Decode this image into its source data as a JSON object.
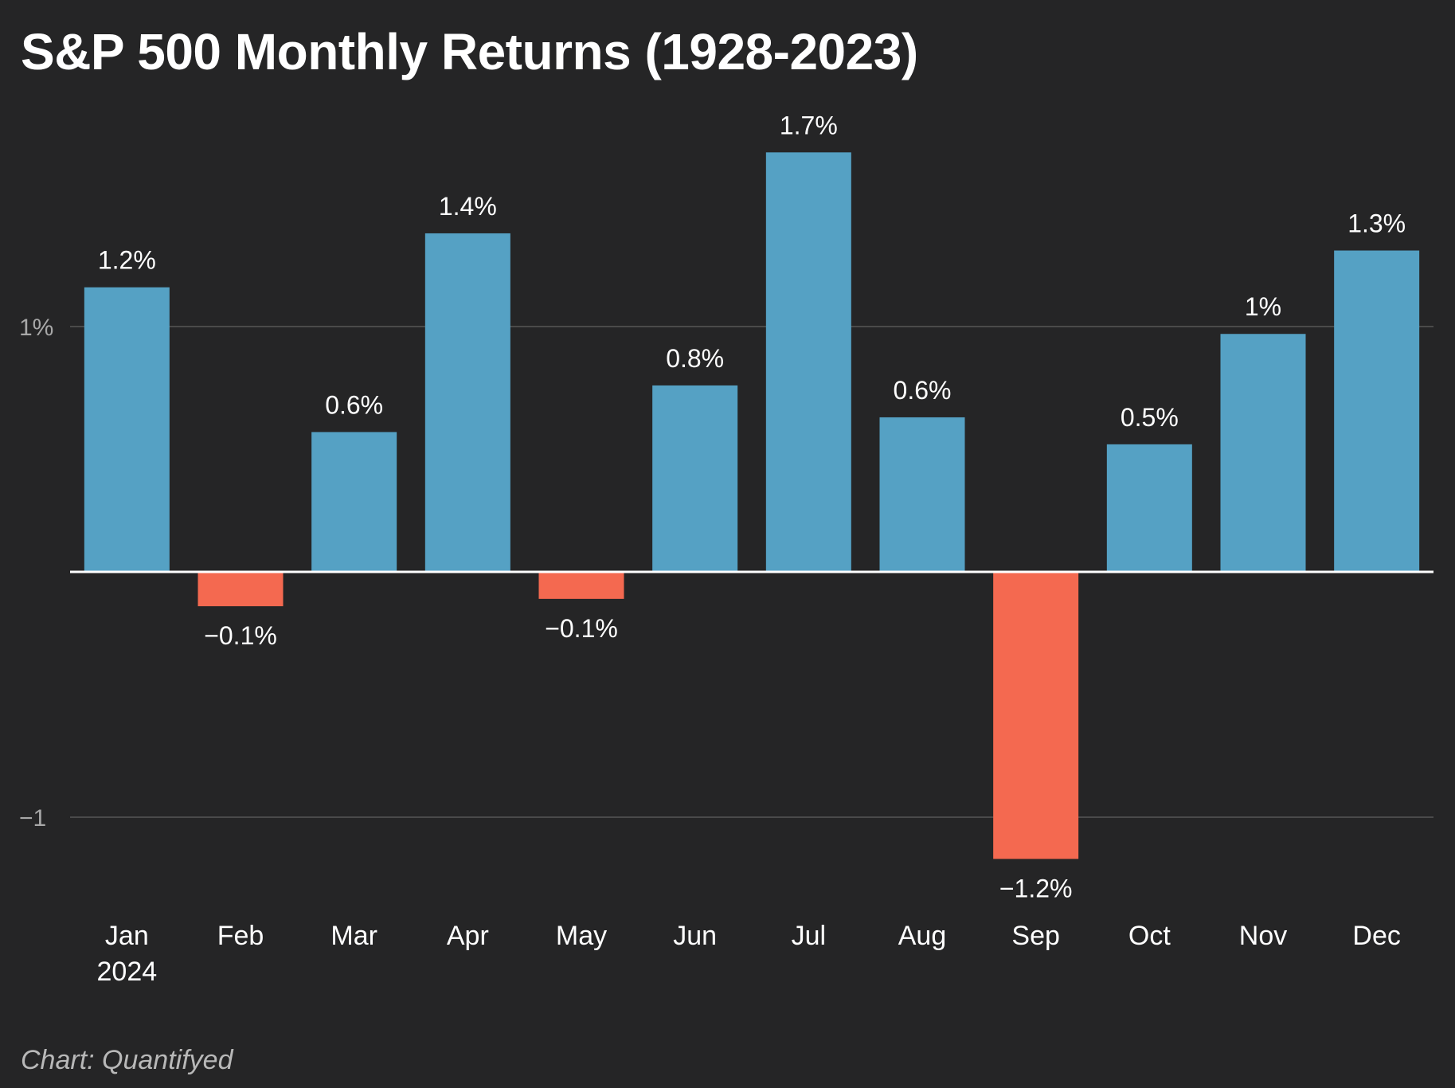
{
  "header": {
    "title": "S&P 500 Monthly Returns (1928-2023)"
  },
  "footer": {
    "credit": "Chart: Quantifyed"
  },
  "colors": {
    "background": "#252526",
    "positive": "#55a1c4",
    "negative": "#f46950",
    "gridline": "#4a4a4a",
    "baseline": "#ffffff",
    "label": "#ffffff",
    "axis_label": "#a8a8a8"
  },
  "chart_data": {
    "type": "bar",
    "title": "S&P 500 Monthly Returns (1928-2023)",
    "categories": [
      "Jan",
      "Feb",
      "Mar",
      "Apr",
      "May",
      "Jun",
      "Jul",
      "Aug",
      "Sep",
      "Oct",
      "Nov",
      "Dec"
    ],
    "category_sublabels": [
      "2024",
      "",
      "",
      "",
      "",
      "",
      "",
      "",
      "",
      "",
      "",
      ""
    ],
    "values": [
      1.16,
      -0.14,
      0.57,
      1.38,
      -0.11,
      0.76,
      1.71,
      0.63,
      -1.17,
      0.52,
      0.97,
      1.31
    ],
    "data_labels": [
      "1.2%",
      "−0.1%",
      "0.6%",
      "1.4%",
      "−0.1%",
      "0.8%",
      "1.7%",
      "0.6%",
      "−1.2%",
      "0.5%",
      "1%",
      "1.3%"
    ],
    "y_ticks": [
      {
        "value": 1,
        "label": "1%"
      },
      {
        "value": -1,
        "label": "−1"
      }
    ],
    "ylim": [
      -1.5,
      1.85
    ],
    "grid": true,
    "legend": "none"
  }
}
